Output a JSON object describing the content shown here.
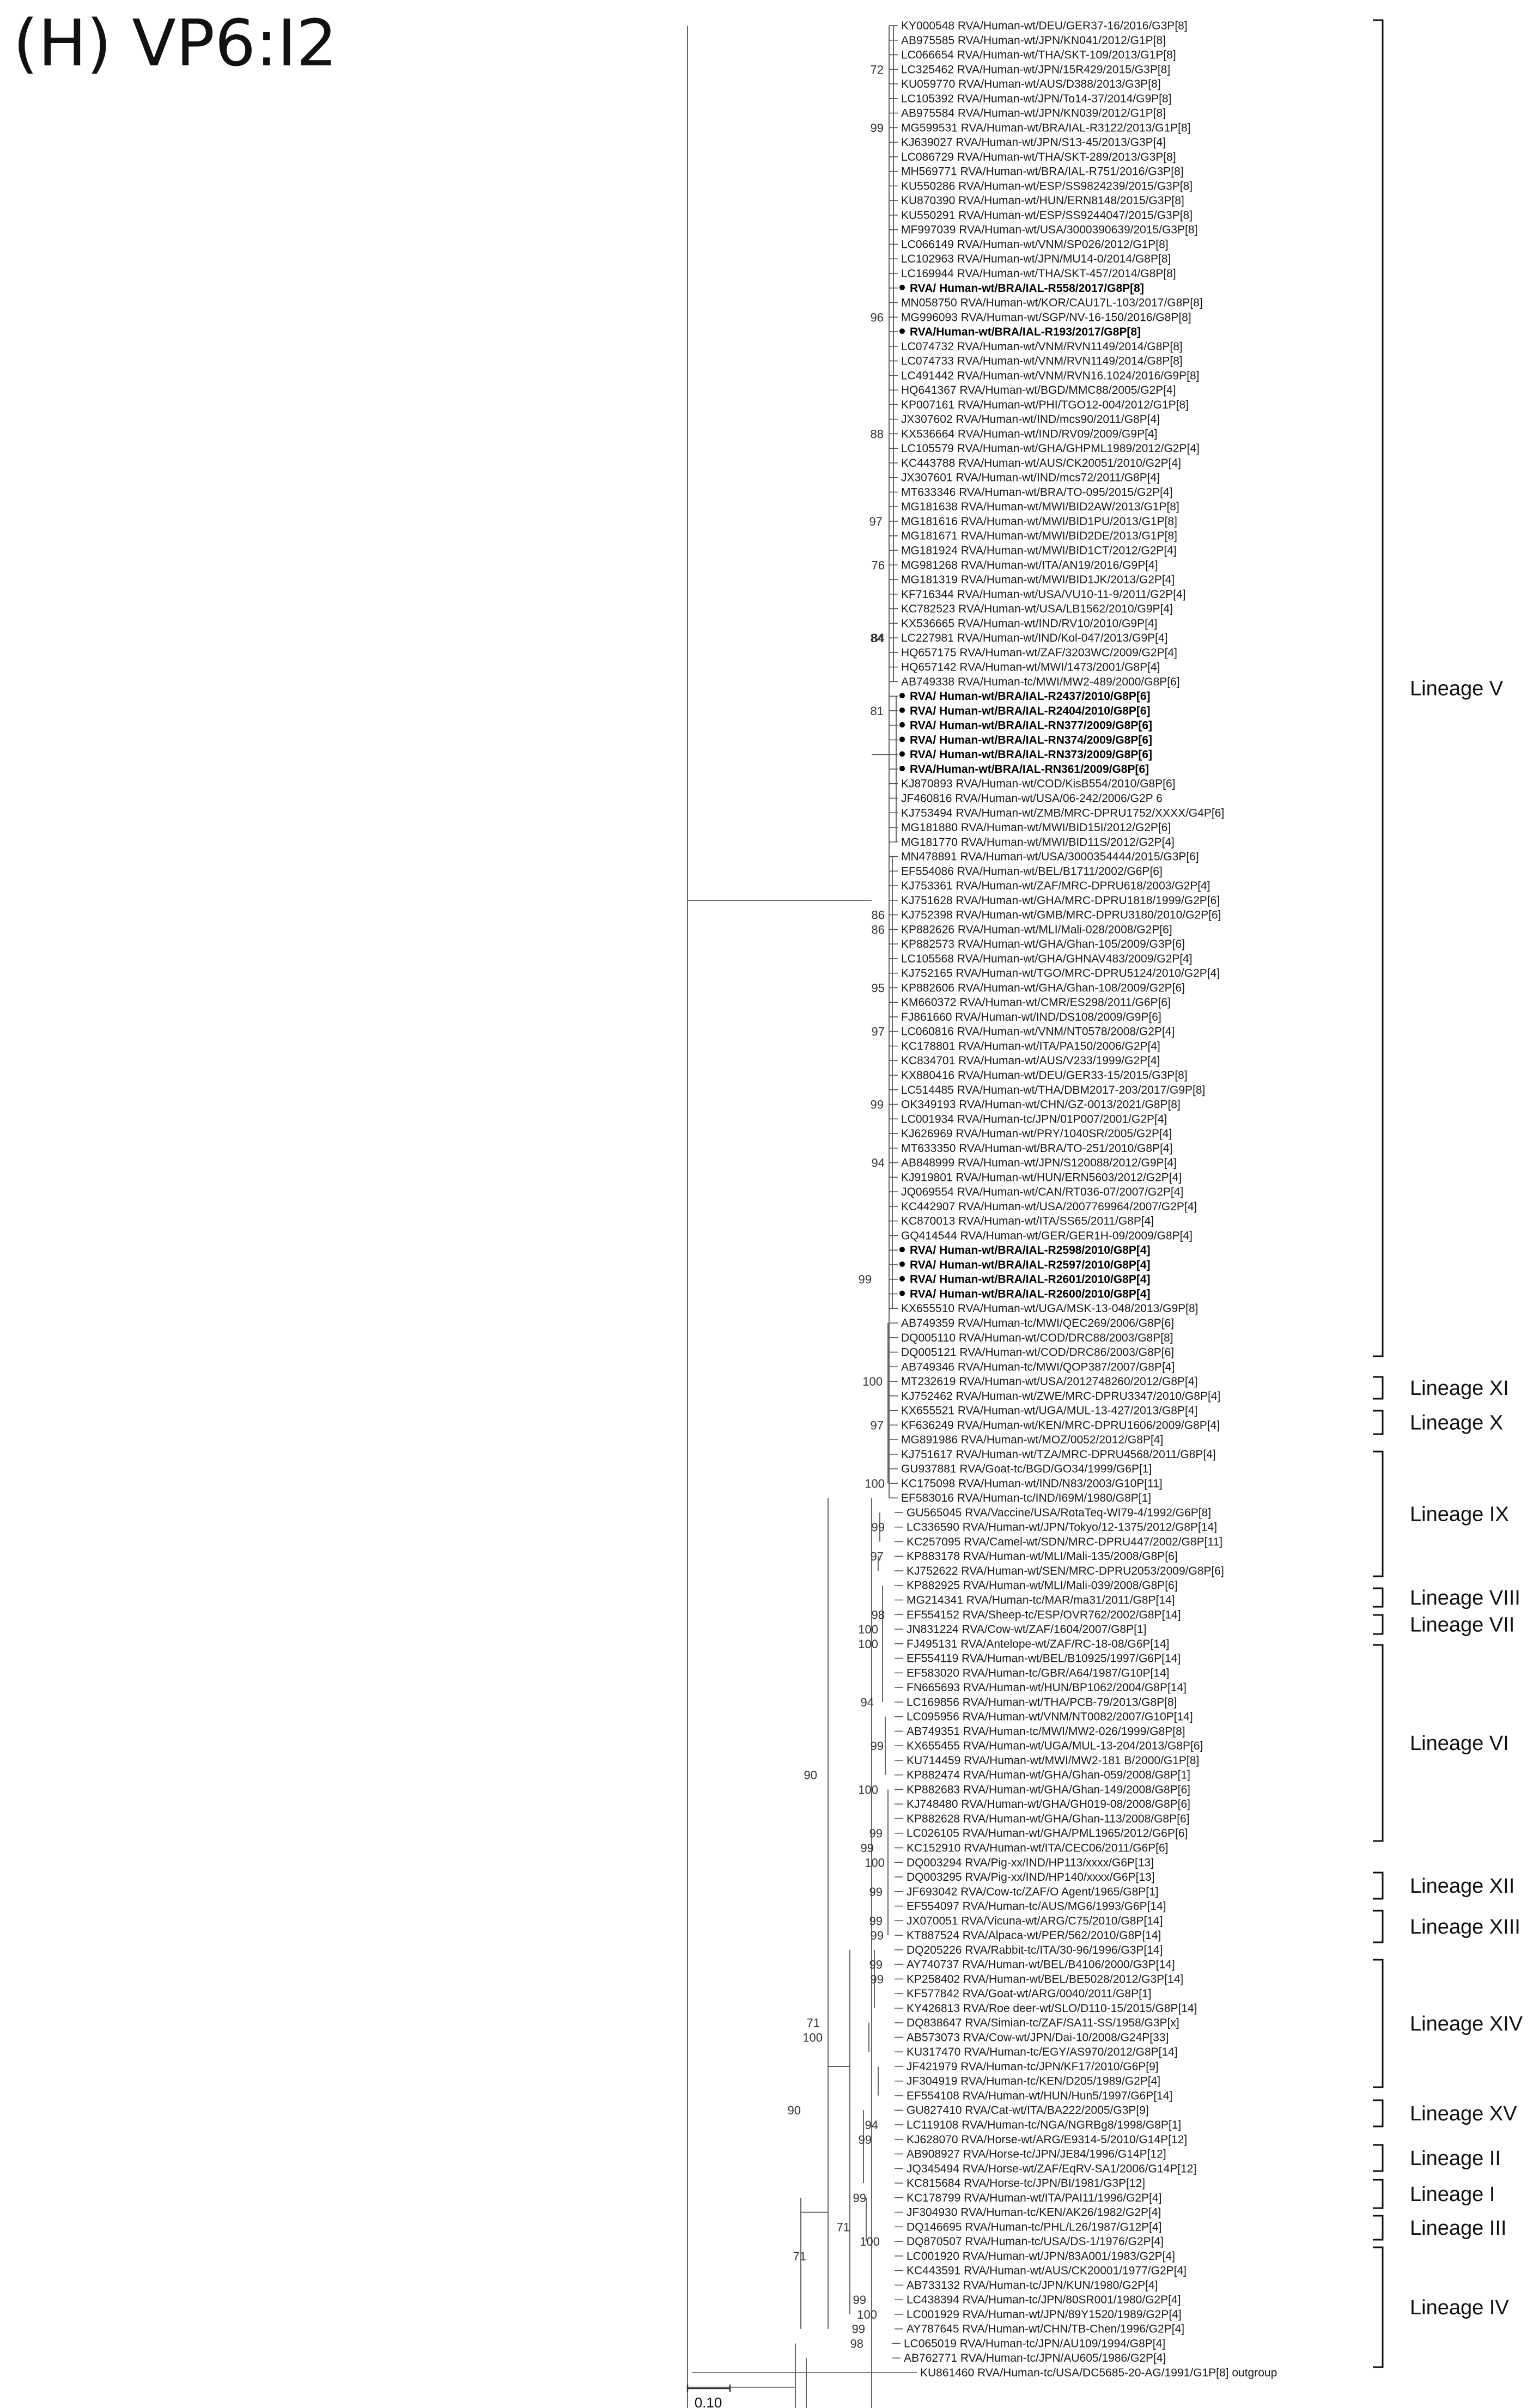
{
  "title": "(H) VP6:I2",
  "colors": {
    "line": "#555555",
    "text": "#1a1a1a",
    "bracket": "#111111"
  },
  "taxa": [
    {
      "label": "KY000548 RVA/Human-wt/DEU/GER37-16/2016/G3P[8]"
    },
    {
      "label": "AB975585 RVA/Human-wt/JPN/KN041/2012/G1P[8]"
    },
    {
      "label": "LC066654 RVA/Human-wt/THA/SKT-109/2013/G1P[8]"
    },
    {
      "label": "LC325462 RVA/Human-wt/JPN/15R429/2015/G3P[8]"
    },
    {
      "label": "KU059770 RVA/Human-wt/AUS/D388/2013/G3P[8]"
    },
    {
      "label": "LC105392 RVA/Human-wt/JPN/To14-37/2014/G9P[8]"
    },
    {
      "label": "AB975584 RVA/Human-wt/JPN/KN039/2012/G1P[8]"
    },
    {
      "label": "MG599531 RVA/Human-wt/BRA/IAL-R3122/2013/G1P[8]"
    },
    {
      "label": "KJ639027 RVA/Human-wt/JPN/S13-45/2013/G3P[4]"
    },
    {
      "label": "LC086729 RVA/Human-wt/THA/SKT-289/2013/G3P[8]"
    },
    {
      "label": "MH569771 RVA/Human-wt/BRA/IAL-R751/2016/G3P[8]"
    },
    {
      "label": "KU550286 RVA/Human-wt/ESP/SS9824239/2015/G3P[8]"
    },
    {
      "label": "KU870390 RVA/Human-wt/HUN/ERN8148/2015/G3P[8]"
    },
    {
      "label": "KU550291 RVA/Human-wt/ESP/SS9244047/2015/G3P[8]"
    },
    {
      "label": "MF997039 RVA/Human-wt/USA/3000390639/2015/G3P[8]"
    },
    {
      "label": "LC066149 RVA/Human-wt/VNM/SP026/2012/G1P[8]"
    },
    {
      "label": "LC102963 RVA/Human-wt/JPN/MU14-0/2014/G8P[8]"
    },
    {
      "label": "LC169944 RVA/Human-wt/THA/SKT-457/2014/G8P[8]"
    },
    {
      "label": "RVA/ Human-wt/BRA/IAL-R558/2017/G8P[8]",
      "bold": true,
      "dot": true
    },
    {
      "label": "MN058750 RVA/Human-wt/KOR/CAU17L-103/2017/G8P[8]"
    },
    {
      "label": "MG996093 RVA/Human-wt/SGP/NV-16-150/2016/G8P[8]"
    },
    {
      "label": "RVA/Human-wt/BRA/IAL-R193/2017/G8P[8]",
      "bold": true,
      "dot": true
    },
    {
      "label": "LC074732 RVA/Human-wt/VNM/RVN1149/2014/G8P[8]"
    },
    {
      "label": "LC074733 RVA/Human-wt/VNM/RVN1149/2014/G8P[8]"
    },
    {
      "label": "LC491442 RVA/Human-wt/VNM/RVN16.1024/2016/G9P[8]"
    },
    {
      "label": "HQ641367 RVA/Human-wt/BGD/MMC88/2005/G2P[4]"
    },
    {
      "label": "KP007161 RVA/Human-wt/PHI/TGO12-004/2012/G1P[8]"
    },
    {
      "label": "JX307602 RVA/Human-wt/IND/mcs90/2011/G8P[4]"
    },
    {
      "label": "KX536664 RVA/Human-wt/IND/RV09/2009/G9P[4]"
    },
    {
      "label": "LC105579 RVA/Human-wt/GHA/GHPML1989/2012/G2P[4]"
    },
    {
      "label": "KC443788 RVA/Human-wt/AUS/CK20051/2010/G2P[4]"
    },
    {
      "label": "JX307601 RVA/Human-wt/IND/mcs72/2011/G8P[4]"
    },
    {
      "label": "MT633346 RVA/Human-wt/BRA/TO-095/2015/G2P[4]"
    },
    {
      "label": "MG181638 RVA/Human-wt/MWI/BID2AW/2013/G1P[8]"
    },
    {
      "label": "MG181616 RVA/Human-wt/MWI/BID1PU/2013/G1P[8]"
    },
    {
      "label": "MG181671 RVA/Human-wt/MWI/BID2DE/2013/G1P[8]"
    },
    {
      "label": "MG181924 RVA/Human-wt/MWI/BID1CT/2012/G2P[4]"
    },
    {
      "label": "MG981268 RVA/Human-wt/ITA/AN19/2016/G9P[4]"
    },
    {
      "label": "MG181319 RVA/Human-wt/MWI/BID1JK/2013/G2P[4]"
    },
    {
      "label": "KF716344 RVA/Human-wt/USA/VU10-11-9/2011/G2P[4]"
    },
    {
      "label": "KC782523 RVA/Human-wt/USA/LB1562/2010/G9P[4]"
    },
    {
      "label": "KX536665 RVA/Human-wt/IND/RV10/2010/G9P[4]"
    },
    {
      "label": "LC227981 RVA/Human-wt/IND/Kol-047/2013/G9P[4]"
    },
    {
      "label": "HQ657175 RVA/Human-wt/ZAF/3203WC/2009/G2P[4]"
    },
    {
      "label": "HQ657142 RVA/Human-wt/MWI/1473/2001/G8P[4]"
    },
    {
      "label": "AB749338 RVA/Human-tc/MWI/MW2-489/2000/G8P[6]"
    },
    {
      "label": "RVA/ Human-wt/BRA/IAL-R2437/2010/G8P[6]",
      "bold": true,
      "dot": true
    },
    {
      "label": "RVA/ Human-wt/BRA/IAL-R2404/2010/G8P[6]",
      "bold": true,
      "dot": true
    },
    {
      "label": "RVA/ Human-wt/BRA/IAL-RN377/2009/G8P[6]",
      "bold": true,
      "dot": true
    },
    {
      "label": "RVA/ Human-wt/BRA/IAL-RN374/2009/G8P[6]",
      "bold": true,
      "dot": true
    },
    {
      "label": "RVA/ Human-wt/BRA/IAL-RN373/2009/G8P[6]",
      "bold": true,
      "dot": true
    },
    {
      "label": "RVA/Human-wt/BRA/IAL-RN361/2009/G8P[6]",
      "bold": true,
      "dot": true
    },
    {
      "label": "KJ870893 RVA/Human-wt/COD/KisB554/2010/G8P[6]"
    },
    {
      "label": "JF460816 RVA/Human-wt/USA/06-242/2006/G2P 6"
    },
    {
      "label": "KJ753494 RVA/Human-wt/ZMB/MRC-DPRU1752/XXXX/G4P[6]"
    },
    {
      "label": "MG181880 RVA/Human-wt/MWI/BID15I/2012/G2P[6]"
    },
    {
      "label": "MG181770 RVA/Human-wt/MWI/BID11S/2012/G2P[4]"
    },
    {
      "label": "MN478891 RVA/Human-wt/USA/3000354444/2015/G3P[6]"
    },
    {
      "label": "EF554086 RVA/Human-wt/BEL/B1711/2002/G6P[6]"
    },
    {
      "label": "KJ753361 RVA/Human-wt/ZAF/MRC-DPRU618/2003/G2P[4]"
    },
    {
      "label": "KJ751628 RVA/Human-wt/GHA/MRC-DPRU1818/1999/G2P[6]"
    },
    {
      "label": "KJ752398 RVA/Human-wt/GMB/MRC-DPRU3180/2010/G2P[6]"
    },
    {
      "label": "KP882626 RVA/Human-wt/MLI/Mali-028/2008/G2P[6]"
    },
    {
      "label": "KP882573 RVA/Human-wt/GHA/Ghan-105/2009/G3P[6]"
    },
    {
      "label": "LC105568 RVA/Human-wt/GHA/GHNAV483/2009/G2P[4]"
    },
    {
      "label": "KJ752165 RVA/Human-wt/TGO/MRC-DPRU5124/2010/G2P[4]"
    },
    {
      "label": "KP882606 RVA/Human-wt/GHA/Ghan-108/2009/G2P[6]"
    },
    {
      "label": "KM660372 RVA/Human-wt/CMR/ES298/2011/G6P[6]"
    },
    {
      "label": "FJ861660 RVA/Human-wt/IND/DS108/2009/G9P[6]"
    },
    {
      "label": "LC060816 RVA/Human-wt/VNM/NT0578/2008/G2P[4]"
    },
    {
      "label": "KC178801 RVA/Human-wt/ITA/PA150/2006/G2P[4]"
    },
    {
      "label": "KC834701 RVA/Human-wt/AUS/V233/1999/G2P[4]"
    },
    {
      "label": "KX880416 RVA/Human-wt/DEU/GER33-15/2015/G3P[8]"
    },
    {
      "label": "LC514485 RVA/Human-wt/THA/DBM2017-203/2017/G9P[8]"
    },
    {
      "label": "OK349193 RVA/Human-wt/CHN/GZ-0013/2021/G8P[8]"
    },
    {
      "label": "LC001934 RVA/Human-tc/JPN/01P007/2001/G2P[4]"
    },
    {
      "label": "KJ626969 RVA/Human-wt/PRY/1040SR/2005/G2P[4]"
    },
    {
      "label": "MT633350 RVA/Human-wt/BRA/TO-251/2010/G8P[4]"
    },
    {
      "label": "AB848999 RVA/Human-wt/JPN/S120088/2012/G9P[4]"
    },
    {
      "label": "KJ919801 RVA/Human-wt/HUN/ERN5603/2012/G2P[4]"
    },
    {
      "label": "JQ069554 RVA/Human-wt/CAN/RT036-07/2007/G2P[4]"
    },
    {
      "label": "KC442907 RVA/Human-wt/USA/2007769964/2007/G2P[4]"
    },
    {
      "label": "KC870013 RVA/Human-wt/ITA/SS65/2011/G8P[4]"
    },
    {
      "label": "GQ414544 RVA/Human-wt/GER/GER1H-09/2009/G8P[4]"
    },
    {
      "label": "RVA/ Human-wt/BRA/IAL-R2598/2010/G8P[4]",
      "bold": true,
      "dot": true
    },
    {
      "label": "RVA/ Human-wt/BRA/IAL-R2597/2010/G8P[4]",
      "bold": true,
      "dot": true
    },
    {
      "label": "RVA/ Human-wt/BRA/IAL-R2601/2010/G8P[4]",
      "bold": true,
      "dot": true
    },
    {
      "label": "RVA/ Human-wt/BRA/IAL-R2600/2010/G8P[4]",
      "bold": true,
      "dot": true
    },
    {
      "label": "KX655510 RVA/Human-wt/UGA/MSK-13-048/2013/G9P[8]"
    },
    {
      "label": "AB749359 RVA/Human-tc/MWI/QEC269/2006/G8P[6]"
    },
    {
      "label": "DQ005110 RVA/Human-wt/COD/DRC88/2003/G8P[8]"
    },
    {
      "label": "DQ005121 RVA/Human-wt/COD/DRC86/2003/G8P[6]"
    },
    {
      "label": "AB749346 RVA/Human-tc/MWI/QOP387/2007/G8P[4]"
    },
    {
      "label": "MT232619 RVA/Human-wt/USA/2012748260/2012/G8P[4]"
    },
    {
      "label": "KJ752462 RVA/Human-wt/ZWE/MRC-DPRU3347/2010/G8P[4]"
    },
    {
      "label": "KX655521 RVA/Human-wt/UGA/MUL-13-427/2013/G8P[4]"
    },
    {
      "label": "KF636249 RVA/Human-wt/KEN/MRC-DPRU1606/2009/G8P[4]"
    },
    {
      "label": "MG891986 RVA/Human-wt/MOZ/0052/2012/G8P[4]"
    },
    {
      "label": "KJ751617 RVA/Human-wt/TZA/MRC-DPRU4568/2011/G8P[4]"
    },
    {
      "label": "GU937881 RVA/Goat-tc/BGD/GO34/1999/G6P[1]"
    },
    {
      "label": "KC175098 RVA/Human-wt/IND/N83/2003/G10P[11]"
    },
    {
      "label": "EF583016 RVA/Human-tc/IND/I69M/1980/G8P[1]"
    },
    {
      "label": "GU565045 RVA/Vaccine/USA/RotaTeq-WI79-4/1992/G6P[8]"
    },
    {
      "label": "LC336590 RVA/Human-wt/JPN/Tokyo/12-1375/2012/G8P[14]"
    },
    {
      "label": "KC257095 RVA/Camel-wt/SDN/MRC-DPRU447/2002/G8P[11]"
    },
    {
      "label": "KP883178 RVA/Human-wt/MLI/Mali-135/2008/G8P[6]"
    },
    {
      "label": "KJ752622 RVA/Human-wt/SEN/MRC-DPRU2053/2009/G8P[6]"
    },
    {
      "label": "KP882925 RVA/Human-wt/MLI/Mali-039/2008/G8P[6]"
    },
    {
      "label": "MG214341 RVA/Human-tc/MAR/ma31/2011/G8P[14]"
    },
    {
      "label": "EF554152 RVA/Sheep-tc/ESP/OVR762/2002/G8P[14]"
    },
    {
      "label": "JN831224 RVA/Cow-wt/ZAF/1604/2007/G8P[1]"
    },
    {
      "label": "FJ495131 RVA/Antelope-wt/ZAF/RC-18-08/G6P[14]"
    },
    {
      "label": "EF554119 RVA/Human-wt/BEL/B10925/1997/G6P[14]"
    },
    {
      "label": "EF583020 RVA/Human-tc/GBR/A64/1987/G10P[14]"
    },
    {
      "label": "FN665693 RVA/Human-wt/HUN/BP1062/2004/G8P[14]"
    },
    {
      "label": "LC169856 RVA/Human-wt/THA/PCB-79/2013/G8P[8]"
    },
    {
      "label": "LC095956 RVA/Human-wt/VNM/NT0082/2007/G10P[14]"
    },
    {
      "label": "AB749351 RVA/Human-tc/MWI/MW2-026/1999/G8P[8]"
    },
    {
      "label": "KX655455 RVA/Human-wt/UGA/MUL-13-204/2013/G8P[6]"
    },
    {
      "label": "KU714459 RVA/Human-wt/MWI/MW2-181 B/2000/G1P[8]"
    },
    {
      "label": "KP882474 RVA/Human-wt/GHA/Ghan-059/2008/G8P[1]"
    },
    {
      "label": "KP882683 RVA/Human-wt/GHA/Ghan-149/2008/G8P[6]"
    },
    {
      "label": "KJ748480 RVA/Human-wt/GHA/GH019-08/2008/G8P[6]"
    },
    {
      "label": "KP882628 RVA/Human-wt/GHA/Ghan-113/2008/G8P[6]"
    },
    {
      "label": "LC026105 RVA/Human-wt/GHA/PML1965/2012/G6P[6]"
    },
    {
      "label": "KC152910 RVA/Human-wt/ITA/CEC06/2011/G6P[6]"
    },
    {
      "label": "DQ003294 RVA/Pig-xx/IND/HP113/xxxx/G6P[13]"
    },
    {
      "label": "DQ003295 RVA/Pig-xx/IND/HP140/xxxx/G6P[13]"
    },
    {
      "label": "JF693042 RVA/Cow-tc/ZAF/O Agent/1965/G8P[1]"
    },
    {
      "label": "EF554097 RVA/Human-tc/AUS/MG6/1993/G6P[14]"
    },
    {
      "label": "JX070051 RVA/Vicuna-wt/ARG/C75/2010/G8P[14]"
    },
    {
      "label": "KT887524 RVA/Alpaca-wt/PER/562/2010/G8P[14]"
    },
    {
      "label": "DQ205226 RVA/Rabbit-tc/ITA/30-96/1996/G3P[14]"
    },
    {
      "label": "AY740737 RVA/Human-wt/BEL/B4106/2000/G3P[14]"
    },
    {
      "label": "KP258402 RVA/Human-wt/BEL/BE5028/2012/G3P[14]"
    },
    {
      "label": "KF577842 RVA/Goat-wt/ARG/0040/2011/G8P[1]"
    },
    {
      "label": "KY426813 RVA/Roe deer-wt/SLO/D110-15/2015/G8P[14]"
    },
    {
      "label": "DQ838647 RVA/Simian-tc/ZAF/SA11-SS/1958/G3P[x]"
    },
    {
      "label": "AB573073 RVA/Cow-wt/JPN/Dai-10/2008/G24P[33]"
    },
    {
      "label": "KU317470 RVA/Human-tc/EGY/AS970/2012/G8P[14]"
    },
    {
      "label": "JF421979 RVA/Human-tc/JPN/KF17/2010/G6P[9]"
    },
    {
      "label": "JF304919 RVA/Human-tc/KEN/D205/1989/G2P[4]"
    },
    {
      "label": "EF554108 RVA/Human-wt/HUN/Hun5/1997/G6P[14]"
    },
    {
      "label": "GU827410 RVA/Cat-wt/ITA/BA222/2005/G3P[9]"
    },
    {
      "label": "LC119108 RVA/Human-tc/NGA/NGRBg8/1998/G8P[1]"
    },
    {
      "label": "KJ628070 RVA/Horse-wt/ARG/E9314-5/2010/G14P[12]"
    },
    {
      "label": "AB908927 RVA/Horse-tc/JPN/JE84/1996/G14P[12]"
    },
    {
      "label": "JQ345494 RVA/Horse-wt/ZAF/EqRV-SA1/2006/G14P[12]"
    },
    {
      "label": "KC815684 RVA/Horse-tc/JPN/BI/1981/G3P[12]"
    },
    {
      "label": "KC178799 RVA/Human-wt/ITA/PAI11/1996/G2P[4]"
    },
    {
      "label": "JF304930 RVA/Human-tc/KEN/AK26/1982/G2P[4]"
    },
    {
      "label": "DQ146695 RVA/Human-tc/PHL/L26/1987/G12P[4]"
    },
    {
      "label": "DQ870507 RVA/Human-tc/USA/DS-1/1976/G2P[4]"
    },
    {
      "label": "LC001920 RVA/Human-wt/JPN/83A001/1983/G2P[4]"
    },
    {
      "label": "KC443591 RVA/Human-wt/AUS/CK20001/1977/G2P[4]"
    },
    {
      "label": "AB733132 RVA/Human-tc/JPN/KUN/1980/G2P[4]"
    },
    {
      "label": "LC438394 RVA/Human-tc/JPN/80SR001/1980/G2P[4]"
    },
    {
      "label": "LC001929 RVA/Human-wt/JPN/89Y1520/1989/G2P[4]"
    },
    {
      "label": "AY787645 RVA/Human-wt/CHN/TB-Chen/1996/G2P[4]"
    },
    {
      "label": "LC065019 RVA/Human-tc/JPN/AU109/1994/G8P[4]"
    },
    {
      "label": "AB762771 RVA/Human-tc/JPN/AU605/1986/G2P[4]"
    },
    {
      "label": "KU861460 RVA/Human-tc/USA/DC5685-20-AG/1991/G1P[8] outgroup"
    }
  ],
  "bootstraps": [
    "99",
    "72",
    "96",
    "88",
    "97",
    "76",
    "84",
    "84",
    "81",
    "86",
    "86",
    "95",
    "97",
    "99",
    "94",
    "99",
    "100",
    "97",
    "100",
    "99",
    "97",
    "98",
    "100",
    "100",
    "94",
    "100",
    "99",
    "100",
    "99",
    "99",
    "99",
    "99",
    "99",
    "99",
    "99",
    "90",
    "71",
    "100",
    "90",
    "94",
    "99",
    "99",
    "71",
    "100",
    "71",
    "99",
    "100",
    "99",
    "98",
    "90"
  ],
  "lineages": [
    {
      "label": "Lineage V"
    },
    {
      "label": "Lineage XI"
    },
    {
      "label": "Lineage X"
    },
    {
      "label": "Lineage IX"
    },
    {
      "label": "Lineage VIII"
    },
    {
      "label": "Lineage VII"
    },
    {
      "label": "Lineage VI"
    },
    {
      "label": "Lineage XII"
    },
    {
      "label": "Lineage XIII"
    },
    {
      "label": "Lineage XIV"
    },
    {
      "label": "Lineage XV"
    },
    {
      "label": "Lineage II"
    },
    {
      "label": "Lineage I"
    },
    {
      "label": "Lineage III"
    },
    {
      "label": "Lineage IV"
    }
  ],
  "scale_bar": {
    "label": "0.10"
  }
}
